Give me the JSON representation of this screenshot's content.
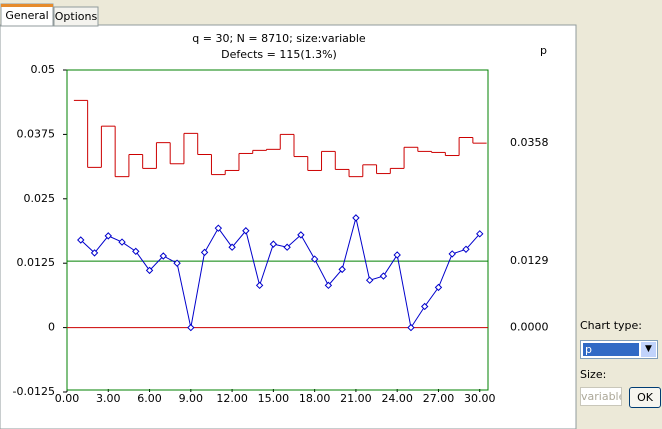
{
  "ui": {
    "tabs": [
      "General",
      "Options"
    ],
    "chart_type_label": "Chart type:",
    "chart_type_value": "p",
    "size_label": "Size:",
    "size_value": "variable",
    "ok_button": "OK"
  },
  "chart_data": {
    "type": "line",
    "title": [
      "q = 30; N = 8710; size:variable",
      "Defects = 115(1.3%)"
    ],
    "y_label": "p",
    "x": [
      1,
      2,
      3,
      4,
      5,
      6,
      7,
      8,
      9,
      10,
      11,
      12,
      13,
      14,
      15,
      16,
      17,
      18,
      19,
      20,
      21,
      22,
      23,
      24,
      25,
      26,
      27,
      28,
      29,
      30
    ],
    "values": [
      0.017,
      0.0145,
      0.0178,
      0.0166,
      0.0148,
      0.0111,
      0.0139,
      0.0125,
      0,
      0.0146,
      0.0193,
      0.0156,
      0.0188,
      0.0082,
      0.0162,
      0.0156,
      0.018,
      0.0133,
      0.0082,
      0.0113,
      0.0213,
      0.0092,
      0.01,
      0.0141,
      0,
      0.0041,
      0.0078,
      0.0143,
      0.0152,
      0.0182
    ],
    "color": "#0000cc",
    "ucl": [
      0.0441,
      0.0311,
      0.0391,
      0.0293,
      0.0336,
      0.0309,
      0.0359,
      0.0318,
      0.0377,
      0.0336,
      0.0297,
      0.0305,
      0.0338,
      0.0344,
      0.0346,
      0.0375,
      0.0332,
      0.0305,
      0.0342,
      0.0307,
      0.0293,
      0.0316,
      0.0299,
      0.0309,
      0.035,
      0.0342,
      0.034,
      0.0334,
      0.0369,
      0.0358
    ],
    "ucl_label": "0.0358",
    "limit_color": "#cc0000",
    "center": {
      "value": 0.0129,
      "label": "0.0129"
    },
    "center_color": "#008000",
    "lcl": {
      "value": 0,
      "label": "0.0000"
    },
    "xlim": [
      0,
      30.6
    ],
    "ylim": [
      -0.0125,
      0.05
    ],
    "yticks": [
      0.05,
      0.0375,
      0.025,
      0.0125,
      0,
      -0.0125
    ],
    "xticks": [
      {
        "value": 0,
        "label": "0.00"
      },
      {
        "value": 3,
        "label": "3.00"
      },
      {
        "value": 6,
        "label": "6.00"
      },
      {
        "value": 9,
        "label": "9.00"
      },
      {
        "value": 12,
        "label": "12.00"
      },
      {
        "value": 15,
        "label": "15.00"
      },
      {
        "value": 18,
        "label": "18.00"
      },
      {
        "value": 21,
        "label": "21.00"
      },
      {
        "value": 24,
        "label": "24.00"
      },
      {
        "value": 27,
        "label": "27.00"
      },
      {
        "value": 30,
        "label": "30.00"
      }
    ]
  }
}
